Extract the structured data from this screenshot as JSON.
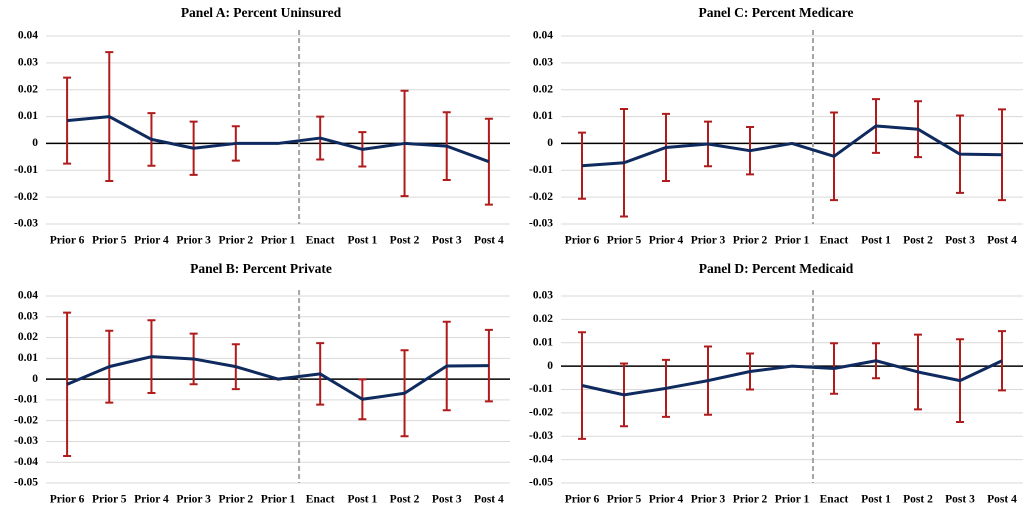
{
  "chart_data": [
    {
      "type": "line",
      "title": "Panel A: Percent Uninsured",
      "categories": [
        "Prior 6",
        "Prior 5",
        "Prior 4",
        "Prior 3",
        "Prior 2",
        "Prior 1",
        "Enact",
        "Post 1",
        "Post 2",
        "Post 3",
        "Post 4"
      ],
      "values": [
        0.0085,
        0.01,
        0.0015,
        -0.0018,
        0,
        0,
        0.002,
        -0.0022,
        0,
        -0.001,
        -0.0068
      ],
      "errors": [
        0.016,
        0.024,
        0.0098,
        0.0099,
        0.0064,
        0,
        0.008,
        0.0064,
        0.0196,
        0.0126,
        0.016
      ],
      "color": "#0f2a5e",
      "error_color": "#b01c1c",
      "ylim": [
        -0.03,
        0.04
      ],
      "yticks": [
        -0.03,
        -0.02,
        -0.01,
        0,
        0.01,
        0.02,
        0.03,
        0.04
      ],
      "grid": true
    },
    {
      "type": "line",
      "title": "Panel C: Percent Medicare",
      "categories": [
        "Prior 6",
        "Prior 5",
        "Prior 4",
        "Prior 3",
        "Prior 2",
        "Prior 1",
        "Enact",
        "Post 1",
        "Post 2",
        "Post 3",
        "Post 4"
      ],
      "values": [
        -0.0083,
        -0.0072,
        -0.0015,
        -0.0002,
        -0.0027,
        0,
        -0.0048,
        0.0065,
        0.0053,
        -0.004,
        -0.0042
      ],
      "errors": [
        0.0123,
        0.02,
        0.0125,
        0.0083,
        0.0088,
        0,
        0.0163,
        0.01,
        0.0104,
        0.0144,
        0.0169
      ],
      "color": "#0f2a5e",
      "error_color": "#b01c1c",
      "ylim": [
        -0.03,
        0.04
      ],
      "yticks": [
        -0.03,
        -0.02,
        -0.01,
        0,
        0.01,
        0.02,
        0.03,
        0.04
      ],
      "grid": true
    },
    {
      "type": "line",
      "title": "Panel B: Percent Private",
      "categories": [
        "Prior 6",
        "Prior 5",
        "Prior 4",
        "Prior 3",
        "Prior 2",
        "Prior 1",
        "Enact",
        "Post 1",
        "Post 2",
        "Post 3",
        "Post 4"
      ],
      "values": [
        -0.0025,
        0.006,
        0.0108,
        0.0097,
        0.006,
        0,
        0.0025,
        -0.0097,
        -0.0068,
        0.0063,
        0.0065
      ],
      "errors": [
        0.0345,
        0.0173,
        0.0175,
        0.0122,
        0.0108,
        0,
        0.0148,
        0.0096,
        0.0207,
        0.0213,
        0.0172
      ],
      "color": "#0f2a5e",
      "error_color": "#b01c1c",
      "ylim": [
        -0.05,
        0.04
      ],
      "yticks": [
        -0.05,
        -0.04,
        -0.03,
        -0.02,
        -0.01,
        0,
        0.01,
        0.02,
        0.03,
        0.04
      ],
      "grid": true
    },
    {
      "type": "line",
      "title": "Panel D: Percent Medicaid",
      "categories": [
        "Prior 6",
        "Prior 5",
        "Prior 4",
        "Prior 3",
        "Prior 2",
        "Prior 1",
        "Enact",
        "Post 1",
        "Post 2",
        "Post 3",
        "Post 4"
      ],
      "values": [
        -0.0083,
        -0.0123,
        -0.0095,
        -0.0062,
        -0.0023,
        0,
        -0.001,
        0.0023,
        -0.0025,
        -0.0062,
        0.0023
      ],
      "errors": [
        0.0228,
        0.0134,
        0.0122,
        0.0146,
        0.0077,
        0,
        0.0108,
        0.0075,
        0.016,
        0.0177,
        0.0127
      ],
      "color": "#0f2a5e",
      "error_color": "#b01c1c",
      "ylim": [
        -0.05,
        0.03
      ],
      "yticks": [
        -0.05,
        -0.04,
        -0.03,
        -0.02,
        -0.01,
        0,
        0.01,
        0.02,
        0.03
      ],
      "grid": true
    }
  ]
}
